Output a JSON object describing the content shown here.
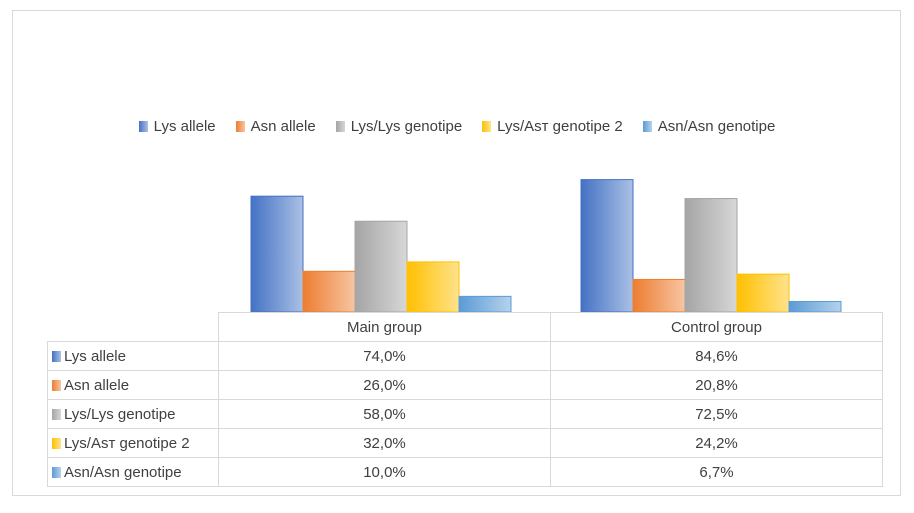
{
  "chart_data": {
    "type": "bar",
    "categories": [
      "Main group",
      "Control group"
    ],
    "series": [
      {
        "name": "Lys allele",
        "values": [
          74.0,
          84.6
        ],
        "color": "#4472c4",
        "labels": [
          "74,0%",
          "84,6%"
        ]
      },
      {
        "name": "Asn  allele",
        "values": [
          26.0,
          20.8
        ],
        "color": "#ed7d31",
        "labels": [
          "26,0%",
          "20,8%"
        ]
      },
      {
        "name": "Lys/Lys genotipe",
        "values": [
          58.0,
          72.5
        ],
        "color": "#a5a5a5",
        "labels": [
          "58,0%",
          "72,5%"
        ]
      },
      {
        "name": "Lys/Asт genotipe 2",
        "values": [
          32.0,
          24.2
        ],
        "color": "#ffc000",
        "labels": [
          "32,0%",
          "24,2%"
        ]
      },
      {
        "name": "Asn/Asn genotipe",
        "values": [
          10.0,
          6.7
        ],
        "color": "#5b9bd5",
        "labels": [
          "10,0%",
          "6,7%"
        ]
      }
    ],
    "ylim": [
      0,
      100
    ],
    "grid": false,
    "legend": "top",
    "data_table": true
  }
}
